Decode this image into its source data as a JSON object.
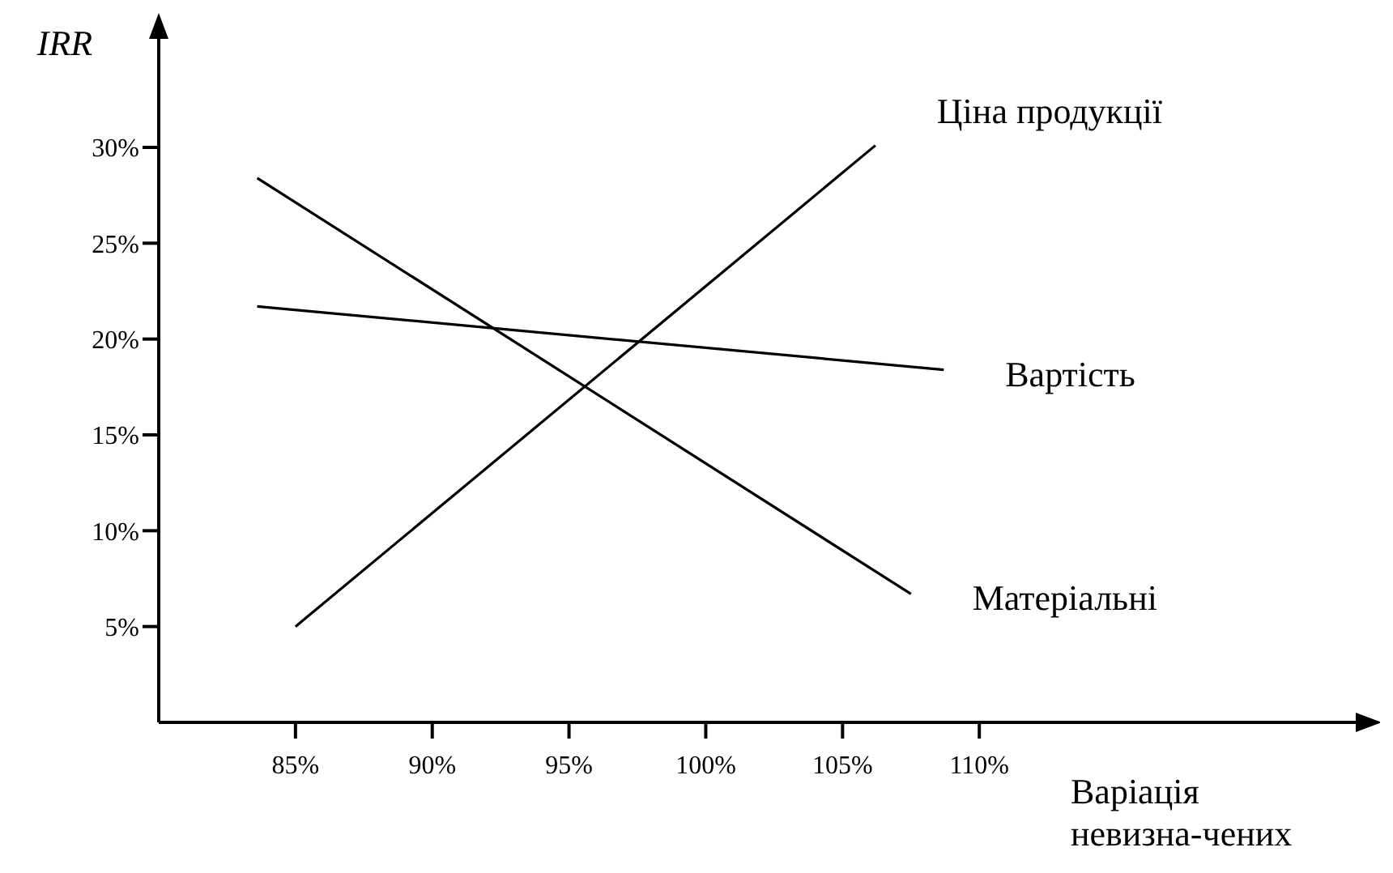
{
  "chart_data": {
    "type": "line",
    "ylabel": "IRR",
    "xlabel": "Варіація невизна-чених",
    "xlim": [
      80,
      124
    ],
    "ylim": [
      0,
      36
    ],
    "xticks": [
      {
        "value": 85,
        "label": "85%"
      },
      {
        "value": 90,
        "label": "90%"
      },
      {
        "value": 95,
        "label": "95%"
      },
      {
        "value": 100,
        "label": "100%"
      },
      {
        "value": 105,
        "label": "105%"
      },
      {
        "value": 110,
        "label": "110%"
      }
    ],
    "yticks": [
      {
        "value": 5,
        "label": "5%"
      },
      {
        "value": 10,
        "label": "10%"
      },
      {
        "value": 15,
        "label": "15%"
      },
      {
        "value": 20,
        "label": "20%"
      },
      {
        "value": 25,
        "label": "25%"
      },
      {
        "value": 30,
        "label": "30%"
      }
    ],
    "series": [
      {
        "name": "Ціна продукції",
        "color": "#000000",
        "x": [
          85,
          106.2
        ],
        "values": [
          5,
          30.1
        ]
      },
      {
        "name": "Вартість",
        "color": "#000000",
        "x": [
          83.6,
          108.7
        ],
        "values": [
          21.7,
          18.4
        ]
      },
      {
        "name": "Матеріальні",
        "color": "#000000",
        "x": [
          83.6,
          107.5
        ],
        "values": [
          28.4,
          6.7
        ]
      }
    ],
    "grid": false,
    "legend": false,
    "marker": "none",
    "line_style": "solid"
  }
}
